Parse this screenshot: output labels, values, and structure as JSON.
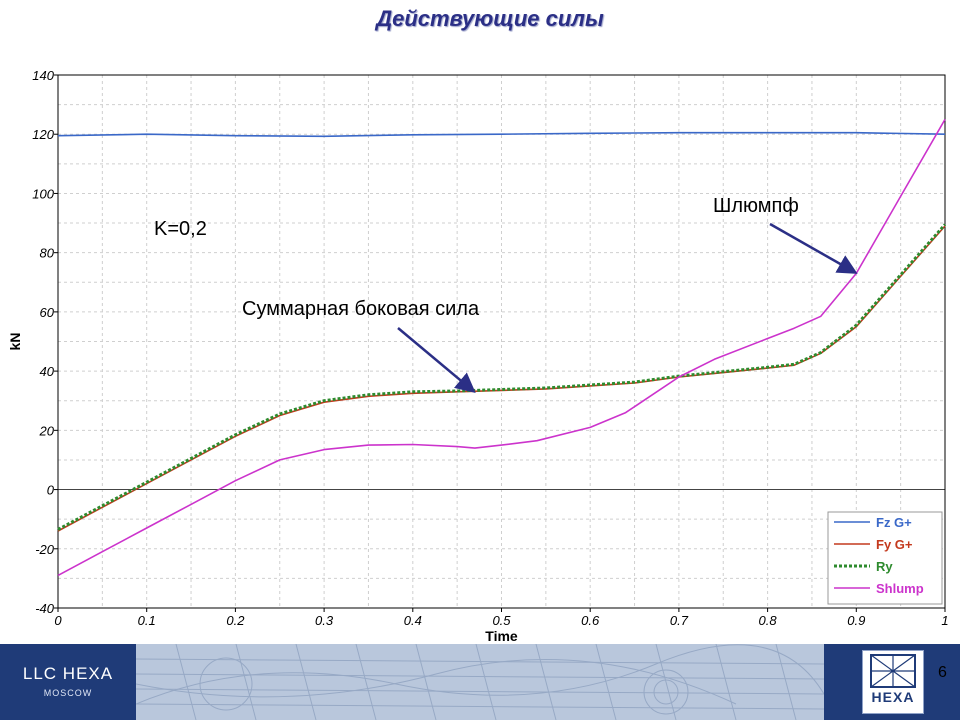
{
  "slide": {
    "title": "Действующие силы",
    "page_number": "6"
  },
  "footer": {
    "company": "LLC  HEXA",
    "city": "MOSCOW",
    "logo_text": "HEXA"
  },
  "colors": {
    "fz": "#3a68c8",
    "fy": "#c43a1e",
    "ry": "#2e8b2e",
    "shlump": "#cc33cc",
    "title": "#2b2f86",
    "footer": "#1f3b78",
    "arrow": "#2b2f86"
  },
  "chart_data": {
    "type": "line",
    "xlabel": "Time",
    "ylabel": "kN",
    "xlim": [
      0,
      1
    ],
    "ylim": [
      -40,
      140
    ],
    "xticks": [
      "0",
      "0.1",
      "0.2",
      "0.3",
      "0.4",
      "0.5",
      "0.6",
      "0.7",
      "0.8",
      "0.9",
      "1"
    ],
    "yticks": [
      "-40",
      "-20",
      "0",
      "20",
      "40",
      "60",
      "80",
      "100",
      "120",
      "140"
    ],
    "grid": true,
    "legend_position": "bottom-right",
    "series": [
      {
        "name": "Fz G+",
        "style": "solid",
        "color_key": "fz",
        "x": [
          0,
          0.1,
          0.2,
          0.3,
          0.4,
          0.5,
          0.6,
          0.7,
          0.8,
          0.9,
          1.0
        ],
        "y": [
          119.5,
          120,
          119.5,
          119.3,
          119.8,
          120,
          120.3,
          120.5,
          120.5,
          120.5,
          120
        ]
      },
      {
        "name": "Fy G+",
        "style": "solid",
        "color_key": "fy",
        "x": [
          0,
          0.05,
          0.1,
          0.15,
          0.2,
          0.25,
          0.3,
          0.35,
          0.4,
          0.45,
          0.5,
          0.55,
          0.6,
          0.65,
          0.7,
          0.75,
          0.8,
          0.83,
          0.86,
          0.9,
          0.95,
          1.0
        ],
        "y": [
          -14,
          -6,
          2,
          10,
          18,
          25,
          29.5,
          31.5,
          32.5,
          33,
          33.5,
          34,
          35,
          36,
          38,
          39.5,
          41,
          42,
          46,
          55,
          72,
          89
        ]
      },
      {
        "name": "Ry",
        "style": "dotted",
        "color_key": "ry",
        "x": [
          0,
          0.05,
          0.1,
          0.15,
          0.2,
          0.25,
          0.3,
          0.35,
          0.4,
          0.45,
          0.5,
          0.55,
          0.6,
          0.65,
          0.7,
          0.75,
          0.8,
          0.83,
          0.86,
          0.9,
          0.95,
          1.0
        ],
        "y": [
          -13.5,
          -5.5,
          2.5,
          10.5,
          18.5,
          25.5,
          30,
          32,
          33,
          33.3,
          33.8,
          34.3,
          35.3,
          36.3,
          38.3,
          39.8,
          41.3,
          42.3,
          46.3,
          55.5,
          72.5,
          89.5
        ]
      },
      {
        "name": "Shlump",
        "style": "solid",
        "color_key": "shlump",
        "x": [
          0,
          0.05,
          0.1,
          0.15,
          0.2,
          0.25,
          0.3,
          0.35,
          0.4,
          0.45,
          0.47,
          0.5,
          0.54,
          0.6,
          0.64,
          0.7,
          0.74,
          0.8,
          0.83,
          0.86,
          0.9,
          0.95,
          1.0
        ],
        "y": [
          -29,
          -21,
          -13,
          -5,
          3,
          10,
          13.5,
          15,
          15.2,
          14.5,
          14,
          15,
          16.5,
          21,
          26,
          38,
          44,
          51,
          54.5,
          58.5,
          73,
          99,
          125
        ]
      }
    ],
    "annotations": [
      {
        "text": "K=0,2"
      },
      {
        "text": "Шлюмпф",
        "target": [
          0.9,
          73
        ]
      },
      {
        "text": "Суммарная боковая сила",
        "target": [
          0.47,
          33
        ]
      }
    ]
  }
}
